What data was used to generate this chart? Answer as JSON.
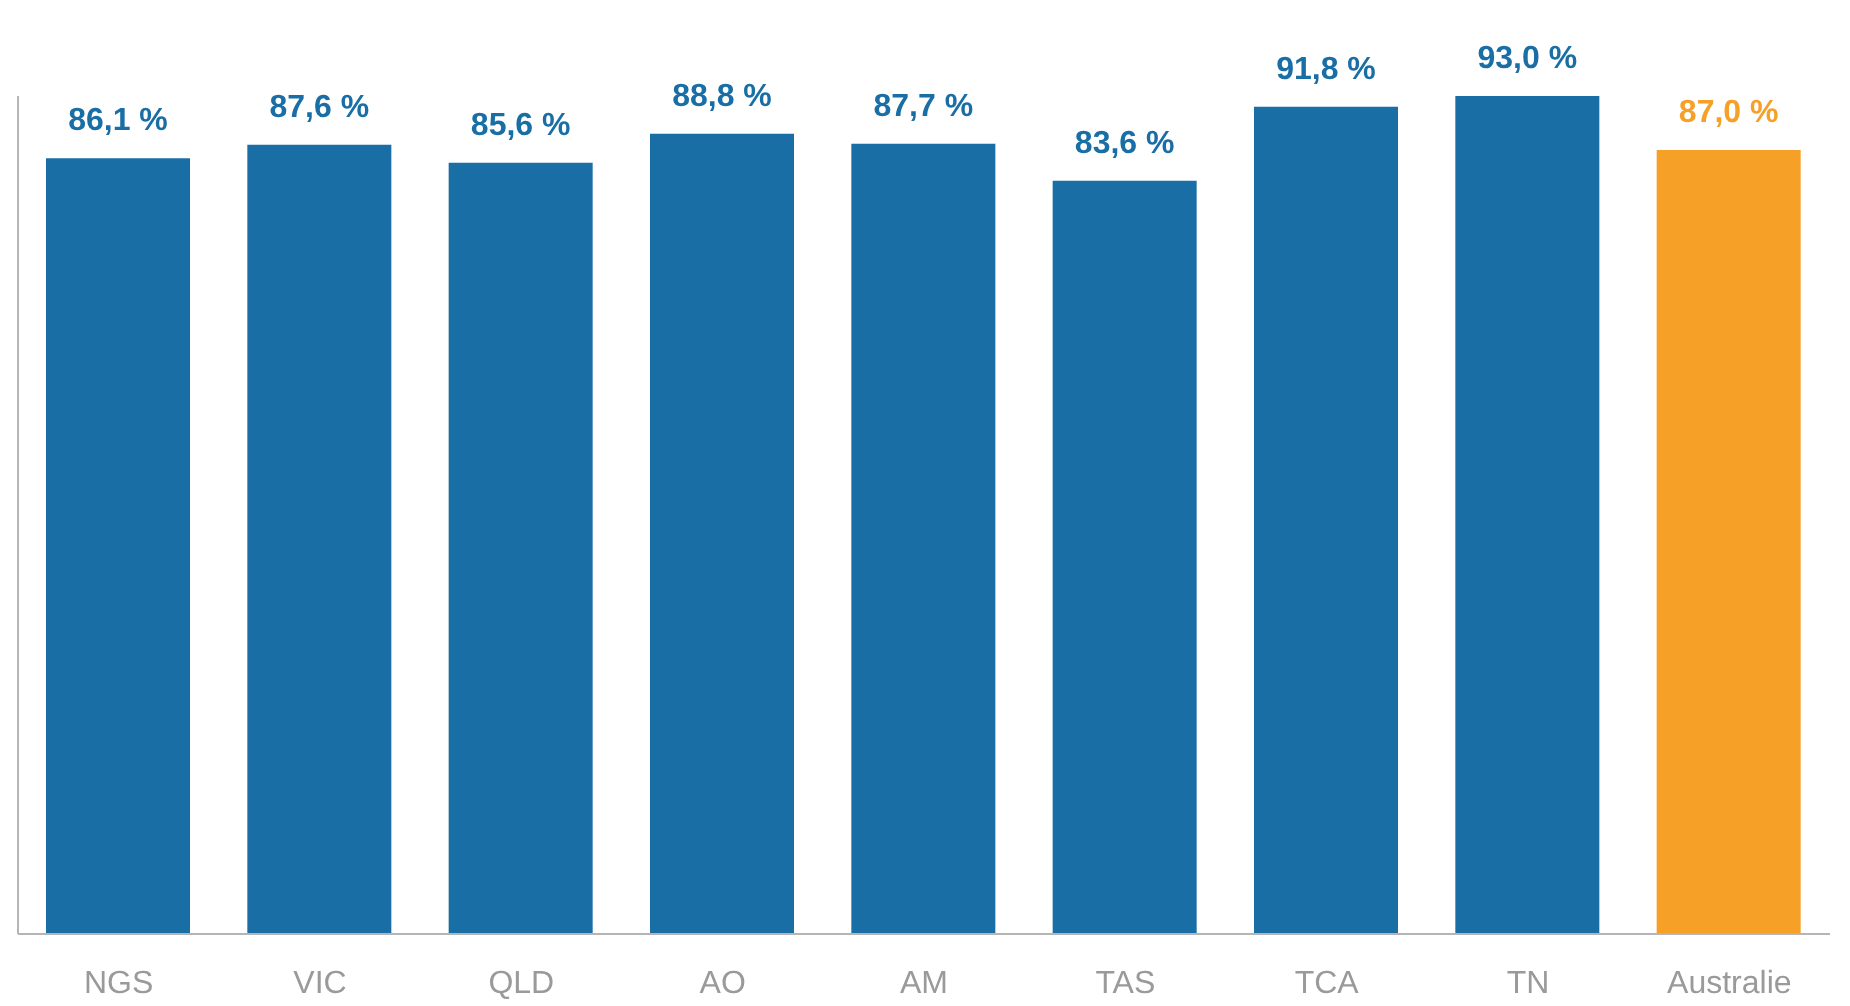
{
  "chart_data": {
    "type": "bar",
    "categories": [
      "NGS",
      "VIC",
      "QLD",
      "AO",
      "AM",
      "TAS",
      "TCA",
      "TN",
      "Australie"
    ],
    "values": [
      86.1,
      87.6,
      85.6,
      88.8,
      87.7,
      83.6,
      91.8,
      93.0,
      87.0
    ],
    "colors": [
      "#186ea5",
      "#186ea5",
      "#186ea5",
      "#186ea5",
      "#186ea5",
      "#186ea5",
      "#186ea5",
      "#186ea5",
      "#f6a027"
    ],
    "value_labels": [
      "86,1 %",
      "87,6 %",
      "85,6 %",
      "88,8 %",
      "87,7 %",
      "83,6 %",
      "91,8 %",
      "93,0 %",
      "87,0 %"
    ],
    "grid": false,
    "legend": false
  }
}
